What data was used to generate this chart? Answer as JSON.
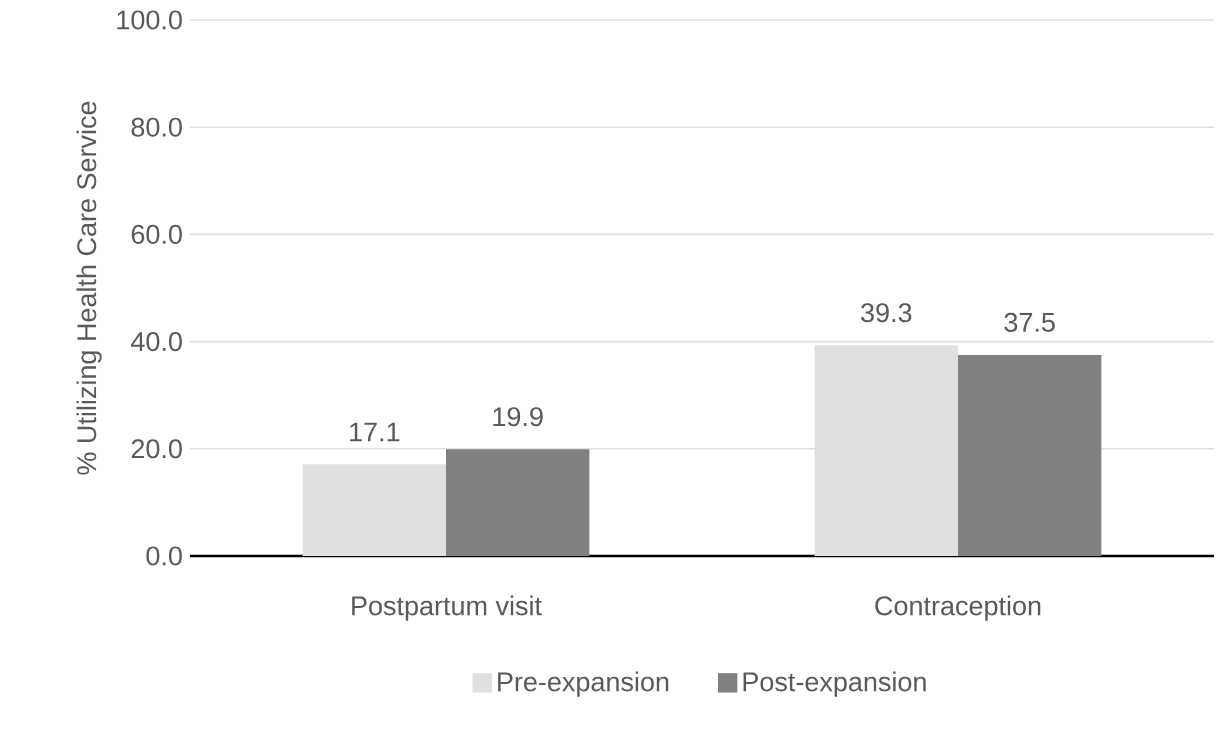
{
  "chart_data": {
    "type": "bar",
    "ylabel": "% Utilizing Health Care Service",
    "categories": [
      "Postpartum visit",
      "Contraception"
    ],
    "series": [
      {
        "name": "Pre-expansion",
        "color": "#e0e0e0",
        "values": [
          17.1,
          39.3
        ]
      },
      {
        "name": "Post-expansion",
        "color": "#808080",
        "values": [
          19.9,
          37.5
        ]
      }
    ],
    "ylim": [
      0,
      100
    ],
    "yticks": [
      {
        "value": 0,
        "label": "0.0"
      },
      {
        "value": 20,
        "label": "20.0"
      },
      {
        "value": 40,
        "label": "40.0"
      },
      {
        "value": 60,
        "label": "60.0"
      },
      {
        "value": 80,
        "label": "80.0"
      },
      {
        "value": 100,
        "label": "100.0"
      }
    ],
    "grid": "y",
    "legend": "bottom",
    "data_labels": true
  }
}
